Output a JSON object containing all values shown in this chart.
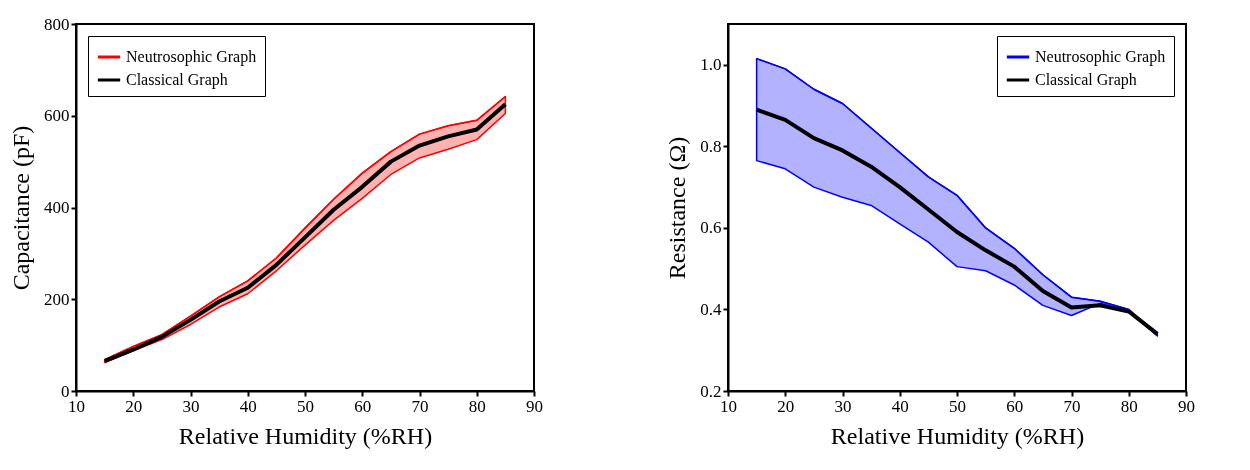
{
  "chart_data": [
    {
      "type": "line",
      "xlabel": "Relative Humidity (%RH)",
      "ylabel": "Capacitance (pF)",
      "x": [
        15,
        20,
        25,
        30,
        35,
        40,
        45,
        50,
        55,
        60,
        65,
        70,
        75,
        80,
        85
      ],
      "xlim": [
        10,
        90
      ],
      "xticks": [
        10,
        20,
        30,
        40,
        50,
        60,
        70,
        80,
        90
      ],
      "ylim": [
        0,
        800
      ],
      "yticks": [
        0,
        200,
        400,
        600,
        800
      ],
      "legend": "top left",
      "series": [
        {
          "name": "Neutrosophic Graph",
          "color": "#ff0000",
          "type": "line",
          "values": [
            68,
            97,
            123,
            163,
            205,
            240,
            290,
            355,
            418,
            475,
            522,
            560,
            578,
            590,
            642
          ],
          "lower": [
            62,
            88,
            112,
            145,
            183,
            212,
            262,
            318,
            372,
            420,
            472,
            508,
            527,
            548,
            605
          ],
          "upper": [
            68,
            97,
            123,
            163,
            205,
            240,
            290,
            355,
            418,
            475,
            522,
            560,
            578,
            590,
            642
          ]
        },
        {
          "name": "Classical Graph",
          "color": "#000000",
          "type": "line",
          "values": [
            65,
            90,
            118,
            155,
            195,
            225,
            275,
            335,
            395,
            445,
            500,
            535,
            555,
            570,
            625
          ]
        }
      ]
    },
    {
      "type": "line",
      "xlabel": "Relative Humidity (%RH)",
      "ylabel": "Resistance (Ω)",
      "x": [
        15,
        20,
        25,
        30,
        35,
        40,
        45,
        50,
        55,
        60,
        65,
        70,
        75,
        80,
        85
      ],
      "xlim": [
        10,
        90
      ],
      "xticks": [
        10,
        20,
        30,
        40,
        50,
        60,
        70,
        80,
        90
      ],
      "ylim": [
        0.2,
        1.1
      ],
      "yticks": [
        0.2,
        0.4,
        0.6,
        0.8,
        {
          "value": 1,
          "label": "1.0"
        }
      ],
      "legend": "top right",
      "series": [
        {
          "name": "Neutrosophic Graph",
          "color": "#0000ff",
          "type": "line",
          "values": [
            1.015,
            0.99,
            0.94,
            0.905,
            0.845,
            0.785,
            0.725,
            0.68,
            0.6,
            0.55,
            0.485,
            0.43,
            0.42,
            0.4,
            null
          ],
          "lower": [
            0.765,
            0.745,
            0.7,
            0.675,
            0.655,
            0.61,
            0.565,
            0.505,
            0.495,
            0.46,
            0.41,
            0.385,
            0.415,
            0.395,
            0.335
          ],
          "upper": [
            1.015,
            0.99,
            0.94,
            0.905,
            0.845,
            0.785,
            0.725,
            0.68,
            0.6,
            0.55,
            0.485,
            0.43,
            0.42,
            0.4,
            0.34
          ]
        },
        {
          "name": "Classical Graph",
          "color": "#000000",
          "type": "line",
          "values": [
            0.89,
            0.865,
            0.82,
            0.79,
            0.75,
            0.7,
            0.645,
            0.59,
            0.545,
            0.505,
            0.445,
            0.405,
            0.41,
            0.395,
            0.34
          ]
        }
      ]
    }
  ]
}
